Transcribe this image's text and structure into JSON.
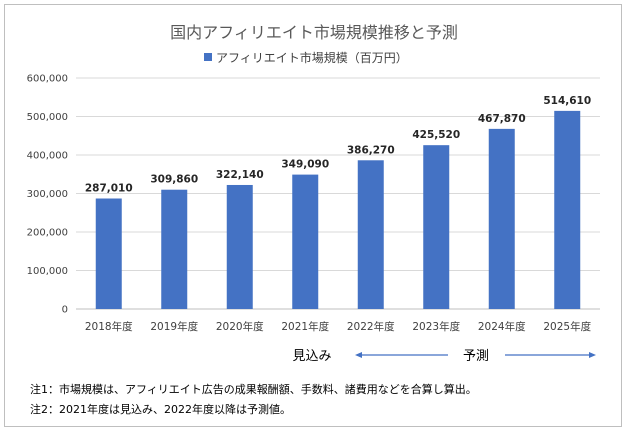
{
  "chart_data": {
    "type": "bar",
    "title": "国内アフィリエイト市場規模推移と予測",
    "legend": {
      "label": "アフィリエイト市場規模（百万円）",
      "placement": "top-center"
    },
    "categories": [
      "2018年度",
      "2019年度",
      "2020年度",
      "2021年度",
      "2022年度",
      "2023年度",
      "2024年度",
      "2025年度"
    ],
    "series": [
      {
        "name": "アフィリエイト市場規模（百万円）",
        "values": [
          287010,
          309860,
          322140,
          349090,
          386270,
          425520,
          467870,
          514610
        ],
        "data_labels": [
          "287,010",
          "309,860",
          "322,140",
          "349,090",
          "386,270",
          "425,520",
          "467,870",
          "514,610"
        ]
      }
    ],
    "ylim": [
      0,
      600000
    ],
    "yticks": [
      0,
      100000,
      200000,
      300000,
      400000,
      500000,
      600000
    ],
    "ytick_labels": [
      "0",
      "100,000",
      "200,000",
      "300,000",
      "400,000",
      "500,000",
      "600,000"
    ],
    "grid": true,
    "bar_color": "#4472C4",
    "annotations": {
      "estimate": "見込み",
      "forecast": "予測"
    }
  },
  "notes": [
    "注1：市場規模は、アフィリエイト広告の成果報酬額、手数料、諸費用などを合算し算出。",
    "注2：2021年度は見込み、2022年度以降は予測値。"
  ]
}
